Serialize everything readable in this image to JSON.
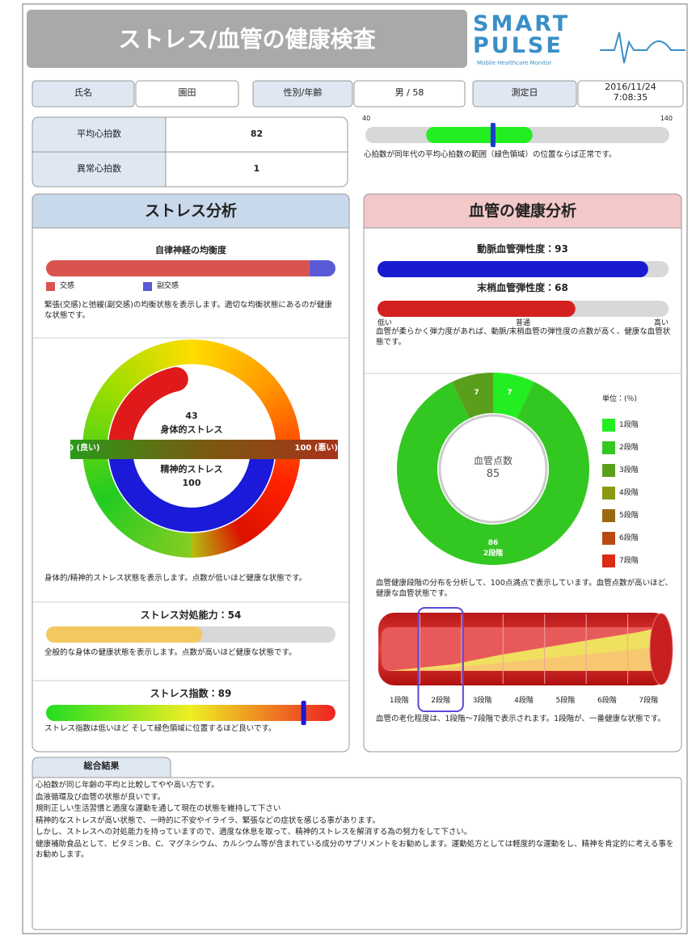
{
  "header": {
    "title": "ストレス/血管の健康検査",
    "logo": "SMART PULSE",
    "logo_subtitle": "Mobile Healthcare Monitor"
  },
  "info": [
    {
      "label": "氏名",
      "value": "園田"
    },
    {
      "label": "性別/年齢",
      "value": "男 / 58"
    },
    {
      "label": "測定日",
      "value": "2016/11/24 7:08:35"
    }
  ],
  "heart": {
    "rows": [
      {
        "label": "平均心拍数",
        "value": 82
      },
      {
        "label": "異常心拍数",
        "value": 1
      }
    ],
    "scale": {
      "min": 40,
      "max": 140,
      "normal_range": [
        60,
        95
      ],
      "note": "心拍数が同年代の平均心拍数の範囲（緑色領域）の位置ならば正常です。"
    }
  },
  "stress": {
    "title": "ストレス分析",
    "balance": {
      "title": "自律神経の均衡度",
      "parts": [
        {
          "name": "交感",
          "value": 91,
          "color": "#d9534f"
        },
        {
          "name": "副交感",
          "value": 9,
          "color": "#5a5ad6"
        }
      ],
      "note": "緊張(交感)と弛緩(副交感)の均衡状態を表示します。適切な均衡状態にあるのが健康な状態です。"
    },
    "gauge": {
      "physical": {
        "label": "身体的ストレス",
        "value": 43
      },
      "mental": {
        "label": "精神的ストレス",
        "value": 100
      },
      "ends": [
        {
          "value": 0,
          "label": "0 (良い)"
        },
        {
          "value": 100,
          "label": "100 (悪い)"
        }
      ],
      "note": "身体的/精神的ストレス状態を表示します。点数が低いほど健康な状態です。"
    },
    "coping": {
      "label": "ストレス対処能力：",
      "value": 54,
      "note": "全般的な身体の健康状態を表示します。点数が高いほど健康な状態です。"
    },
    "index": {
      "label": "ストレス指数：",
      "value": 89,
      "note": "ストレス指数は低いほど そして緑色領域に位置するほど良いです。"
    }
  },
  "vascular": {
    "title": "血管の健康分析",
    "arterial": {
      "label": "動脈血管弾性度：",
      "value": 93,
      "color": "#1a1ad0"
    },
    "peripheral": {
      "label": "末梢血管弾性度：",
      "value": 68,
      "color": "#d42020"
    },
    "scale_labels": [
      "低い",
      "普通",
      "高い"
    ],
    "note": "血管が柔らかく弾力度があれば、動脈/末梢血管の弾性度の点数が高く、健康な血管状態です。",
    "donut": {
      "center_label": "血管点数",
      "score": 85,
      "unit": "単位：(％)",
      "segments": [
        {
          "name": "1段階",
          "value": 7,
          "color": "#22ee22"
        },
        {
          "name": "2段階",
          "value": 86,
          "color": "#33c722"
        },
        {
          "name": "3段階",
          "value": 7,
          "color": "#5a9f1c"
        },
        {
          "name": "4段階",
          "value": 0,
          "color": "#8a9a12"
        },
        {
          "name": "5段階",
          "value": 0,
          "color": "#9a6a12"
        },
        {
          "name": "6段階",
          "value": 0,
          "color": "#b84a14"
        },
        {
          "name": "7段階",
          "value": 0,
          "color": "#dd2a14"
        }
      ],
      "note": "血管健康段階の分布を分析して、100点満点で表示しています。血管点数が高いほど、健康な血管状態です。"
    },
    "stages_note": "血管の老化程度は、1段階〜7段階で表示されます。1段階が、一番健康な状態です。"
  },
  "summary": {
    "title": "総合結果",
    "lines": [
      "心拍数が同じ年齢の平均と比較してやや高い方です。",
      "血液循環及び血管の状態が良いです。",
      "規則正しい生活習慣と適度な運動を通して現在の状態を維持して下さい",
      "精神的なストレスが高い状態で、一時的に不安やイライラ、緊張などの症状を感じる事があります。",
      "しかし、ストレスへの対処能力を持っていますので、適度な休息を取って、精神的ストレスを解消する為の努力をして下さい。",
      "健康補助食品として、ビタミンB、C、マグネシウム、カルシウム等が含まれている成分のサプリメントをお勧めします。運動処方としては軽度的な運動をし、精神を肯定的に考える事をお勧めします。"
    ]
  }
}
